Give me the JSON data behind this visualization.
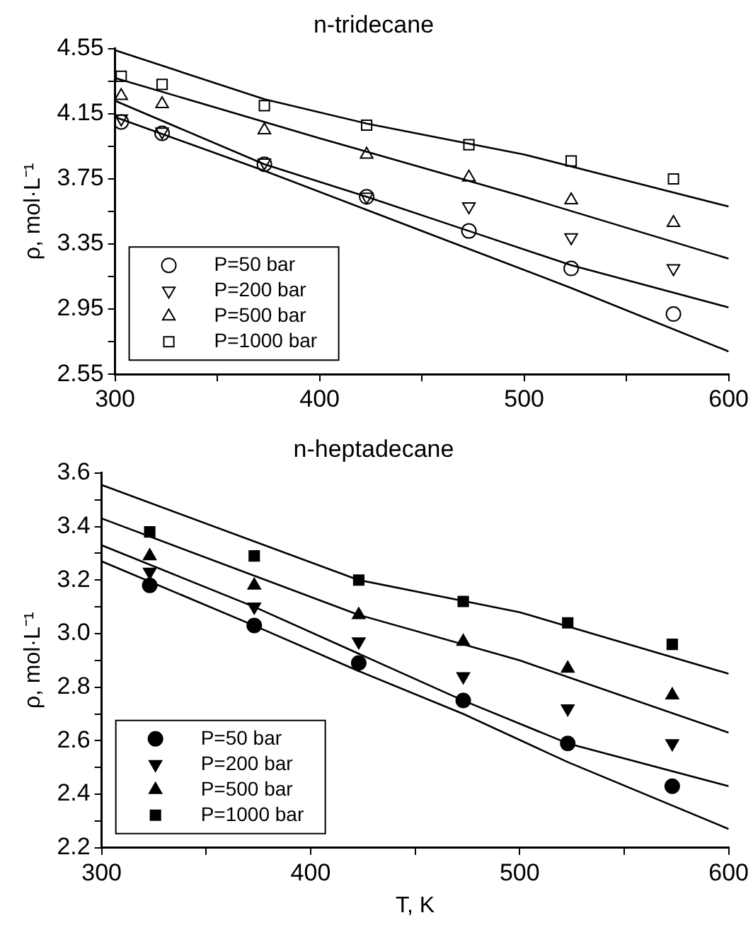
{
  "chart_data": [
    {
      "type": "scatter",
      "title": "n-tridecane",
      "ylabel": "ρ, mol·L⁻¹",
      "xlim": [
        300,
        600
      ],
      "ylim": [
        2.55,
        4.55
      ],
      "xticks": [
        300,
        {
          "value": 350,
          "label": null
        },
        400,
        {
          "value": 450,
          "label": null
        },
        500,
        {
          "value": 550,
          "label": null
        },
        600
      ],
      "yticks": [
        2.55,
        {
          "value": 2.75,
          "label": null
        },
        2.95,
        {
          "value": 3.15,
          "label": null
        },
        3.35,
        {
          "value": 3.55,
          "label": null
        },
        3.75,
        {
          "value": 3.95,
          "label": null
        },
        4.15,
        {
          "value": 4.35,
          "label": null
        },
        4.55
      ],
      "grid": false,
      "legend": "bottom left",
      "series": [
        {
          "name": "P=50 bar",
          "color": "#000000",
          "marker": "circle-open",
          "x": [
            303,
            323,
            373,
            423,
            473,
            523,
            573
          ],
          "values": [
            4.1,
            4.03,
            3.84,
            3.64,
            3.43,
            3.2,
            2.92
          ]
        },
        {
          "name": "P=200 bar",
          "color": "#000000",
          "marker": "triangle-down-open",
          "x": [
            303,
            323,
            373,
            423,
            473,
            523,
            573
          ],
          "values": [
            4.12,
            4.04,
            3.85,
            3.64,
            3.58,
            3.39,
            3.2
          ]
        },
        {
          "name": "P=500 bar",
          "color": "#000000",
          "marker": "triangle-open",
          "x": [
            303,
            323,
            373,
            423,
            473,
            523,
            573
          ],
          "values": [
            4.26,
            4.21,
            4.05,
            3.9,
            3.76,
            3.62,
            3.48
          ]
        },
        {
          "name": "P=1000 bar",
          "color": "#000000",
          "marker": "square-open",
          "x": [
            303,
            323,
            373,
            423,
            473,
            523,
            573
          ],
          "values": [
            4.38,
            4.33,
            4.2,
            4.08,
            3.96,
            3.86,
            3.75
          ]
        },
        {
          "type": "line",
          "color": "#000000",
          "marker": "none",
          "x": [
            300,
            373,
            423,
            473,
            523,
            600
          ],
          "values": [
            4.13,
            3.8,
            3.56,
            3.32,
            3.08,
            2.69
          ]
        },
        {
          "type": "line",
          "color": "#000000",
          "marker": "none",
          "x": [
            300,
            373,
            423,
            473,
            523,
            600
          ],
          "values": [
            4.23,
            3.84,
            3.64,
            3.43,
            3.22,
            2.96
          ]
        },
        {
          "type": "line",
          "color": "#000000",
          "marker": "none",
          "x": [
            300,
            400,
            500,
            600
          ],
          "values": [
            4.37,
            4.0,
            3.64,
            3.26
          ]
        },
        {
          "type": "line",
          "color": "#000000",
          "marker": "none",
          "x": [
            300,
            373,
            423,
            500,
            600
          ],
          "values": [
            4.54,
            4.24,
            4.09,
            3.9,
            3.58
          ]
        }
      ]
    },
    {
      "type": "scatter",
      "title": "n-heptadecane",
      "xlabel": "T, K",
      "ylabel": "ρ, mol·L⁻¹",
      "xlim": [
        300,
        600
      ],
      "ylim": [
        2.2,
        3.6
      ],
      "xticks": [
        300,
        {
          "value": 350,
          "label": null
        },
        400,
        {
          "value": 450,
          "label": null
        },
        500,
        {
          "value": 550,
          "label": null
        },
        600
      ],
      "yticks": [
        2.2,
        {
          "value": 2.3,
          "label": null
        },
        2.4,
        {
          "value": 2.5,
          "label": null
        },
        2.6,
        {
          "value": 2.7,
          "label": null
        },
        2.8,
        {
          "value": 2.9,
          "label": null
        },
        {
          "value": 3,
          "label": "3.0"
        },
        {
          "value": 3.1,
          "label": null
        },
        3.2,
        {
          "value": 3.3,
          "label": null
        },
        3.4,
        {
          "value": 3.5,
          "label": null
        },
        3.6
      ],
      "grid": false,
      "legend": "bottom left",
      "series": [
        {
          "name": "P=50 bar",
          "color": "#000000",
          "marker": "circle",
          "x": [
            323,
            373,
            423,
            473,
            523,
            573
          ],
          "values": [
            3.18,
            3.03,
            2.89,
            2.75,
            2.59,
            2.43
          ]
        },
        {
          "name": "P=200 bar",
          "color": "#000000",
          "marker": "triangle-down",
          "x": [
            323,
            373,
            423,
            473,
            523,
            573
          ],
          "values": [
            3.23,
            3.1,
            2.97,
            2.84,
            2.72,
            2.59
          ]
        },
        {
          "name": "P=500 bar",
          "color": "#000000",
          "marker": "triangle",
          "x": [
            323,
            373,
            423,
            473,
            523,
            573
          ],
          "values": [
            3.29,
            3.18,
            3.07,
            2.97,
            2.87,
            2.77
          ]
        },
        {
          "name": "P=1000 bar",
          "color": "#000000",
          "marker": "square",
          "x": [
            323,
            373,
            423,
            473,
            523,
            573
          ],
          "values": [
            3.38,
            3.29,
            3.2,
            3.12,
            3.04,
            2.96
          ]
        },
        {
          "type": "line",
          "color": "#000000",
          "marker": "none",
          "x": [
            300,
            373,
            423,
            473,
            523,
            600
          ],
          "values": [
            3.27,
            3.03,
            2.86,
            2.7,
            2.52,
            2.27
          ]
        },
        {
          "type": "line",
          "color": "#000000",
          "marker": "none",
          "x": [
            300,
            373,
            473,
            523,
            600
          ],
          "values": [
            3.33,
            3.1,
            2.75,
            2.59,
            2.43
          ]
        },
        {
          "type": "line",
          "color": "#000000",
          "marker": "none",
          "x": [
            300,
            423,
            500,
            600
          ],
          "values": [
            3.43,
            3.07,
            2.9,
            2.63
          ]
        },
        {
          "type": "line",
          "color": "#000000",
          "marker": "none",
          "x": [
            300,
            423,
            500,
            600
          ],
          "values": [
            3.555,
            3.2,
            3.08,
            2.85
          ]
        }
      ]
    }
  ]
}
